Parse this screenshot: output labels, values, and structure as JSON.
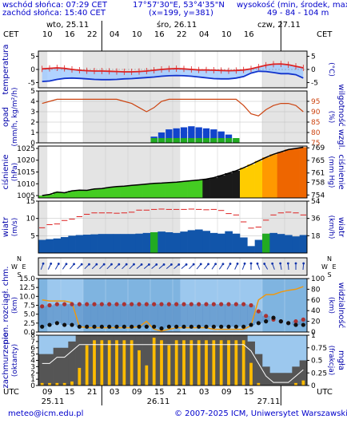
{
  "header": {
    "sunrise": "wschód słońca: 07:29 CET",
    "sunset": "zachód słońca: 15:40 CET",
    "coords": "17°57'30\"E, 53°4'35\"N",
    "grid": "(x=199, y=381)",
    "elev_label": "wysokość (min, środek, max)",
    "elev_values": "49 - 84 - 104 m"
  },
  "timeline": {
    "tz_left": "CET",
    "tz_right": "CET",
    "days": [
      "wto, 25.11",
      "śro, 26.11",
      "czw, 27.11"
    ],
    "top_hours": [
      "10",
      "16",
      "22",
      "04",
      "10",
      "16",
      "22",
      "04",
      "10",
      "16"
    ],
    "bottom_hours": [
      "09",
      "15",
      "21",
      "03",
      "09",
      "15",
      "21",
      "03",
      "09",
      "15"
    ],
    "bottom_days": [
      "25.11",
      "26.11",
      "27.11"
    ],
    "utc_left": "UTC",
    "utc_right": "UTC"
  },
  "footer": {
    "email": "meteo@icm.edu.pl",
    "copyright": "© 2007-2025 ICM, Uniwersytet Warszawski"
  },
  "colors": {
    "frame": "#000000",
    "label": "#0000aa",
    "temp": "#dd2222",
    "dew": "#1133cc",
    "rain": "#1144cc",
    "pressure": "#000000",
    "wind_bar": "#1155aa",
    "gust": "#dd2222",
    "visibility": "#ee9911",
    "cloud": "#ffbb00"
  },
  "chart_data": [
    {
      "type": "line",
      "name": "temperature",
      "ylabel_left": "temperatura",
      "ylabel_right": "(°C)",
      "yticks": [
        -5,
        0,
        5
      ],
      "ylim": [
        -7,
        7
      ],
      "temp": [
        0.2,
        0.4,
        0.6,
        0.4,
        0.0,
        -0.3,
        -0.5,
        -0.6,
        -0.6,
        -0.7,
        -0.8,
        -0.9,
        -0.9,
        -0.8,
        -0.6,
        -0.3,
        0.0,
        0.2,
        0.3,
        0.2,
        0.0,
        -0.2,
        -0.2,
        -0.3,
        -0.4,
        -0.5,
        -0.4,
        -0.2,
        0.2,
        0.9,
        1.6,
        2.0,
        2.1,
        1.8,
        1.2,
        0.6
      ],
      "dew": [
        -4.6,
        -4.4,
        -3.8,
        -3.4,
        -3.3,
        -3.4,
        -3.6,
        -3.8,
        -3.9,
        -3.9,
        -3.8,
        -3.6,
        -3.5,
        -3.3,
        -3.1,
        -2.9,
        -2.6,
        -2.4,
        -2.3,
        -2.4,
        -2.6,
        -2.9,
        -3.2,
        -3.5,
        -3.6,
        -3.6,
        -3.3,
        -2.7,
        -1.4,
        -0.7,
        -0.8,
        -1.2,
        -1.6,
        -1.6,
        -2.0,
        -3.3
      ]
    },
    {
      "type": "bar",
      "name": "precipitation",
      "ylabel_left": "opad",
      "ylabel_left2": "(mm/h, kg/m²/h)",
      "ylabel_right": "(%)",
      "ylabel_right2": "wilgotność wzgl.",
      "yticks_left": [
        0,
        1,
        2,
        3,
        4,
        5
      ],
      "yticks_right": [
        75,
        80,
        85,
        90,
        95
      ],
      "ylim_left": [
        0,
        5
      ],
      "ylim_right": [
        75,
        100
      ],
      "rain": [
        0,
        0,
        0,
        0,
        0,
        0,
        0,
        0,
        0,
        0,
        0,
        0,
        0,
        0,
        0,
        0.6,
        1.0,
        1.3,
        1.4,
        1.5,
        1.6,
        1.5,
        1.4,
        1.3,
        1.1,
        0.8,
        0.3,
        0,
        0,
        0,
        0,
        0,
        0,
        0,
        0,
        0
      ],
      "humidity": [
        94,
        95,
        96,
        96,
        96,
        96,
        96,
        96,
        96,
        96,
        96,
        95,
        94,
        92,
        90,
        92,
        95,
        96,
        96,
        96,
        96,
        96,
        96,
        96,
        96,
        96,
        96,
        93,
        89,
        88,
        91,
        93,
        94,
        94,
        93,
        90
      ]
    },
    {
      "type": "area",
      "name": "pressure",
      "ylabel_left": "ciśnienie",
      "ylabel_left2": "(hPa)",
      "ylabel_right": "(mm Hg)",
      "ylabel_right2": "ciśnienie",
      "yticks_left": [
        1005,
        1010,
        1015,
        1020,
        1025
      ],
      "yticks_right": [
        754,
        758,
        761,
        765,
        769
      ],
      "ylim": [
        1004,
        1026
      ],
      "values": [
        1005.0,
        1005.5,
        1006.5,
        1006.2,
        1007.0,
        1007.3,
        1007.2,
        1007.8,
        1008.0,
        1008.5,
        1008.8,
        1009.0,
        1009.3,
        1009.6,
        1009.9,
        1010.2,
        1010.3,
        1010.5,
        1010.7,
        1011.0,
        1011.3,
        1011.6,
        1012.0,
        1012.6,
        1013.5,
        1014.5,
        1015.5,
        1016.8,
        1018.2,
        1019.7,
        1021.2,
        1022.5,
        1023.5,
        1024.5,
        1025.0,
        1025.5
      ]
    },
    {
      "type": "bar",
      "name": "wind",
      "ylabel_left": "wiatr",
      "ylabel_left2": "(m/s)",
      "ylabel_right": "(km/h)",
      "ylabel_right2": "wiatr",
      "yticks_left": [
        5,
        10,
        15
      ],
      "yticks_right": [
        18,
        36,
        54
      ],
      "ylim": [
        0,
        15
      ],
      "speed": [
        3.8,
        4.0,
        4.2,
        4.6,
        5.0,
        5.2,
        5.3,
        5.4,
        5.5,
        5.5,
        5.5,
        5.5,
        5.5,
        5.6,
        5.8,
        6.0,
        6.2,
        6.0,
        5.8,
        6.2,
        6.6,
        6.8,
        6.4,
        5.8,
        5.6,
        6.3,
        5.6,
        4.5,
        2.0,
        3.8,
        5.6,
        5.8,
        5.5,
        5.2,
        4.8,
        5.2
      ],
      "gust": [
        7.3,
        8.2,
        8.4,
        9.4,
        9.8,
        10.5,
        11.2,
        11.6,
        11.6,
        11.6,
        11.5,
        11.6,
        11.8,
        12.4,
        12.4,
        12.6,
        12.7,
        12.6,
        12.6,
        12.6,
        12.7,
        12.6,
        12.5,
        12.6,
        12.3,
        11.4,
        11.0,
        9.0,
        7.2,
        7.5,
        9.5,
        11.0,
        11.6,
        11.8,
        11.6,
        11.0
      ]
    },
    {
      "type": "scatter",
      "name": "wind_direction",
      "compass": [
        "N",
        "E",
        "S",
        "W"
      ],
      "direction_deg": [
        200,
        205,
        210,
        215,
        220,
        225,
        225,
        225,
        225,
        225,
        225,
        225,
        225,
        230,
        230,
        230,
        230,
        230,
        230,
        230,
        225,
        220,
        220,
        215,
        215,
        210,
        205,
        200,
        180,
        160,
        150,
        160,
        170,
        175,
        180,
        185
      ]
    },
    {
      "type": "scatter",
      "name": "visibility",
      "ylabel_left": "pion. rozciągł. chm.",
      "ylabel_left2": "(km)",
      "ylabel_right": "(km)",
      "ylabel_right2": "widzialność",
      "yticks_left": [
        0,
        2.5,
        5,
        7.5,
        10,
        12.5,
        15
      ],
      "yticks_right": [
        0,
        20,
        40,
        60,
        80,
        100
      ],
      "ylim_left": [
        0,
        15
      ],
      "ylim_right": [
        0,
        100
      ],
      "visibility_km": [
        60,
        58,
        58,
        58,
        55,
        10,
        8,
        8,
        8,
        8,
        8,
        8,
        8,
        10,
        20,
        5,
        2,
        5,
        8,
        8,
        8,
        8,
        8,
        5,
        5,
        5,
        5,
        5,
        12,
        60,
        70,
        70,
        75,
        78,
        80,
        85
      ],
      "cloud_base": [
        1.5,
        2.0,
        2.5,
        2.0,
        2.0,
        1.5,
        1.5,
        1.5,
        1.5,
        1.5,
        1.5,
        1.5,
        1.5,
        1.5,
        1.5,
        1.5,
        1.0,
        1.5,
        1.5,
        1.5,
        1.5,
        1.5,
        1.5,
        1.5,
        1.5,
        1.5,
        1.5,
        1.5,
        2.0,
        2.5,
        3.0,
        4.0,
        3.0,
        2.5,
        2.0,
        2.0
      ],
      "cloud_top": [
        7.2,
        7.5,
        7.8,
        7.8,
        7.8,
        7.8,
        7.8,
        7.8,
        7.8,
        7.8,
        7.8,
        7.8,
        7.8,
        7.8,
        7.8,
        7.8,
        7.8,
        7.8,
        7.8,
        7.8,
        7.8,
        7.8,
        7.8,
        7.8,
        7.8,
        7.8,
        7.8,
        7.8,
        7.5,
        5.8,
        4.5,
        3.5,
        3.0,
        2.5,
        3.0,
        3.5
      ]
    },
    {
      "type": "bar",
      "name": "cloudiness",
      "ylabel_left": "zachmurzenie",
      "ylabel_left2": "(oktanty)",
      "ylabel_right": "(frakcja)",
      "ylabel_right2": "mgła",
      "yticks_left": [
        0,
        1,
        2,
        3,
        4,
        5,
        6,
        7,
        8
      ],
      "yticks_right": [
        0,
        0.25,
        0.5,
        0.75,
        1
      ],
      "ylim": [
        0,
        8
      ],
      "cloud_oktas": [
        5,
        5,
        6,
        6,
        7,
        8,
        8,
        8,
        8,
        8,
        8,
        8,
        8,
        8,
        8,
        8,
        8,
        8,
        8,
        8,
        8,
        8,
        8,
        8,
        8,
        8,
        8,
        8,
        7,
        5,
        3,
        2,
        2,
        2,
        3,
        4
      ],
      "fog": [
        0.05,
        0.05,
        0.05,
        0.05,
        0.08,
        0.35,
        0.8,
        0.9,
        0.9,
        0.9,
        0.9,
        0.9,
        0.9,
        0.7,
        0.4,
        0.95,
        0.9,
        0.8,
        0.9,
        0.9,
        0.9,
        0.9,
        0.9,
        0.9,
        0.9,
        0.9,
        0.9,
        0.9,
        0.45,
        0.05,
        0.0,
        0.0,
        0.0,
        0.0,
        0.05,
        0.1
      ]
    }
  ]
}
